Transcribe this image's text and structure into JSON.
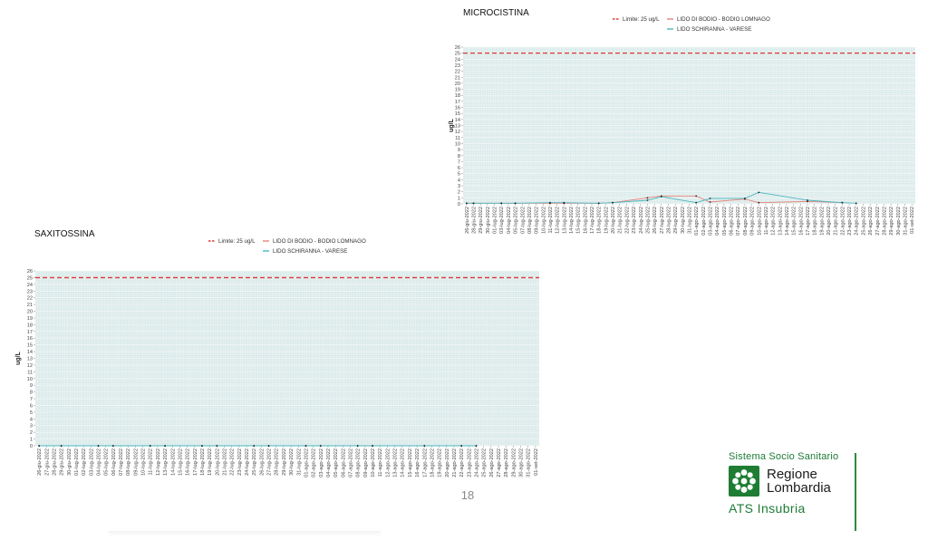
{
  "page_number": "18",
  "logo": {
    "sistema": "Sistema Socio Sanitario",
    "regione": "Regione",
    "lombardia": "Lombardia",
    "ats": "ATS Insubria",
    "brand_color": "#1e7d33"
  },
  "chart_data": [
    {
      "id": "microcistina",
      "type": "line",
      "title": "MICROCISTINA",
      "xlabel": "",
      "ylabel": "ug/L",
      "ylim": [
        0,
        26
      ],
      "yticks": [
        0,
        1,
        2,
        3,
        4,
        5,
        6,
        7,
        8,
        9,
        10,
        11,
        12,
        13,
        14,
        15,
        16,
        17,
        18,
        19,
        20,
        21,
        22,
        23,
        24,
        25,
        26
      ],
      "grid": true,
      "background": "#d9e9e9",
      "categories": [
        "26-giu-2022",
        "28-giu-2022",
        "29-giu-2022",
        "30-giu-2022",
        "01-lug-2022",
        "03-lug-2022",
        "04-lug-2022",
        "05-lug-2022",
        "07-lug-2022",
        "08-lug-2022",
        "09-lug-2022",
        "10-lug-2022",
        "11-lug-2022",
        "12-lug-2022",
        "13-lug-2022",
        "14-lug-2022",
        "15-lug-2022",
        "16-lug-2022",
        "17-lug-2022",
        "18-lug-2022",
        "19-lug-2022",
        "20-lug-2022",
        "21-lug-2022",
        "22-lug-2022",
        "23-lug-2022",
        "24-lug-2022",
        "25-lug-2022",
        "26-lug-2022",
        "27-lug-2022",
        "28-lug-2022",
        "29-lug-2022",
        "30-lug-2022",
        "31-lug-2022",
        "01-ago-2022",
        "02-ago-2022",
        "03-ago-2022",
        "04-ago-2022",
        "05-ago-2022",
        "06-ago-2022",
        "07-ago-2022",
        "08-ago-2022",
        "09-ago-2022",
        "10-ago-2022",
        "11-ago-2022",
        "12-ago-2022",
        "13-ago-2022",
        "14-ago-2022",
        "15-ago-2022",
        "16-ago-2022",
        "17-ago-2022",
        "18-ago-2022",
        "19-ago-2022",
        "20-ago-2022",
        "21-ago-2022",
        "22-ago-2022",
        "23-ago-2022",
        "24-ago-2022",
        "25-ago-2022",
        "26-ago-2022",
        "27-ago-2022",
        "28-ago-2022",
        "29-ago-2022",
        "30-ago-2022",
        "31-ago-2022",
        "01-set-2022"
      ],
      "legend": {
        "placement": "top"
      },
      "threshold": {
        "name": "Limite: 25 ug/L",
        "value": 25,
        "color": "#e03a3a",
        "style": "dashed"
      },
      "series": [
        {
          "name": "LIDO DI BODIO - BODIO LOMNAGO",
          "color": "#e8837b",
          "points": [
            [
              "26-giu-2022",
              0.1
            ],
            [
              "28-giu-2022",
              0.1
            ],
            [
              "03-lug-2022",
              0.1
            ],
            [
              "05-lug-2022",
              0.1
            ],
            [
              "11-lug-2022",
              0.1
            ],
            [
              "13-lug-2022",
              0.1
            ],
            [
              "18-lug-2022",
              0.1
            ],
            [
              "20-lug-2022",
              0.2
            ],
            [
              "25-lug-2022",
              1.0
            ],
            [
              "27-lug-2022",
              1.3
            ],
            [
              "01-ago-2022",
              1.3
            ],
            [
              "03-ago-2022",
              0.3
            ],
            [
              "08-ago-2022",
              0.8
            ],
            [
              "10-ago-2022",
              0.2
            ],
            [
              "17-ago-2022",
              0.4
            ],
            [
              "22-ago-2022",
              0.2
            ]
          ]
        },
        {
          "name": "LIDO SCHIRANNA - VARESE",
          "color": "#4bb8c0",
          "points": [
            [
              "26-giu-2022",
              0.1
            ],
            [
              "28-giu-2022",
              0.1
            ],
            [
              "03-lug-2022",
              0.1
            ],
            [
              "05-lug-2022",
              0.1
            ],
            [
              "11-lug-2022",
              0.2
            ],
            [
              "13-lug-2022",
              0.2
            ],
            [
              "18-lug-2022",
              0.1
            ],
            [
              "20-lug-2022",
              0.2
            ],
            [
              "25-lug-2022",
              0.6
            ],
            [
              "27-lug-2022",
              1.2
            ],
            [
              "01-ago-2022",
              0.2
            ],
            [
              "03-ago-2022",
              0.9
            ],
            [
              "08-ago-2022",
              0.9
            ],
            [
              "10-ago-2022",
              1.9
            ],
            [
              "17-ago-2022",
              0.6
            ],
            [
              "22-ago-2022",
              0.2
            ],
            [
              "24-ago-2022",
              0.1
            ]
          ]
        }
      ]
    },
    {
      "id": "saxitossina",
      "type": "line",
      "title": "SAXITOSSINA",
      "xlabel": "",
      "ylabel": "ug/L",
      "ylim": [
        0,
        26
      ],
      "yticks": [
        0,
        1,
        2,
        3,
        4,
        5,
        6,
        7,
        8,
        9,
        10,
        11,
        12,
        13,
        14,
        15,
        16,
        17,
        18,
        19,
        20,
        21,
        22,
        23,
        24,
        25,
        26
      ],
      "grid": true,
      "background": "#d9e9e9",
      "categories": [
        "26-giu-2022",
        "27-giu-2022",
        "28-giu-2022",
        "29-giu-2022",
        "30-giu-2022",
        "01-lug-2022",
        "02-lug-2022",
        "03-lug-2022",
        "04-lug-2022",
        "05-lug-2022",
        "06-lug-2022",
        "07-lug-2022",
        "08-lug-2022",
        "09-lug-2022",
        "10-lug-2022",
        "11-lug-2022",
        "12-lug-2022",
        "13-lug-2022",
        "14-lug-2022",
        "15-lug-2022",
        "16-lug-2022",
        "17-lug-2022",
        "18-lug-2022",
        "19-lug-2022",
        "20-lug-2022",
        "21-lug-2022",
        "22-lug-2022",
        "23-lug-2022",
        "24-lug-2022",
        "25-lug-2022",
        "26-lug-2022",
        "27-lug-2022",
        "28-lug-2022",
        "29-lug-2022",
        "30-lug-2022",
        "31-lug-2022",
        "01-ago-2022",
        "02-ago-2022",
        "03-ago-2022",
        "04-ago-2022",
        "05-ago-2022",
        "06-ago-2022",
        "07-ago-2022",
        "08-ago-2022",
        "09-ago-2022",
        "10-ago-2022",
        "11-ago-2022",
        "12-ago-2022",
        "13-ago-2022",
        "14-ago-2022",
        "15-ago-2022",
        "16-ago-2022",
        "17-ago-2022",
        "18-ago-2022",
        "19-ago-2022",
        "20-ago-2022",
        "21-ago-2022",
        "22-ago-2022",
        "23-ago-2022",
        "24-ago-2022",
        "25-ago-2022",
        "26-ago-2022",
        "27-ago-2022",
        "28-ago-2022",
        "29-ago-2022",
        "30-ago-2022",
        "31-ago-2022",
        "01-set-2022"
      ],
      "legend": {
        "placement": "top"
      },
      "threshold": {
        "name": "Limite: 25 ug/L",
        "value": 25,
        "color": "#e03a3a",
        "style": "dashed"
      },
      "series": [
        {
          "name": "LIDO DI BODIO - BODIO LOMNAGO",
          "color": "#e8837b",
          "points": [
            [
              "26-giu-2022",
              0
            ],
            [
              "29-giu-2022",
              0
            ],
            [
              "04-lug-2022",
              0
            ],
            [
              "06-lug-2022",
              0
            ],
            [
              "11-lug-2022",
              0
            ],
            [
              "13-lug-2022",
              0
            ],
            [
              "18-lug-2022",
              0
            ],
            [
              "20-lug-2022",
              0
            ],
            [
              "25-lug-2022",
              0
            ],
            [
              "27-lug-2022",
              0
            ],
            [
              "01-ago-2022",
              0
            ],
            [
              "03-ago-2022",
              0
            ],
            [
              "08-ago-2022",
              0
            ],
            [
              "10-ago-2022",
              0
            ],
            [
              "17-ago-2022",
              0
            ],
            [
              "22-ago-2022",
              0
            ],
            [
              "24-ago-2022",
              0
            ]
          ]
        },
        {
          "name": "LIDO SCHIRANNA - VARESE",
          "color": "#4bb8c0",
          "points": [
            [
              "26-giu-2022",
              0
            ],
            [
              "29-giu-2022",
              0
            ],
            [
              "04-lug-2022",
              0
            ],
            [
              "06-lug-2022",
              0
            ],
            [
              "11-lug-2022",
              0
            ],
            [
              "13-lug-2022",
              0
            ],
            [
              "18-lug-2022",
              0
            ],
            [
              "20-lug-2022",
              0
            ],
            [
              "25-lug-2022",
              0
            ],
            [
              "27-lug-2022",
              0
            ],
            [
              "01-ago-2022",
              0
            ],
            [
              "03-ago-2022",
              0
            ],
            [
              "08-ago-2022",
              0
            ],
            [
              "10-ago-2022",
              0
            ],
            [
              "17-ago-2022",
              0
            ],
            [
              "22-ago-2022",
              0
            ],
            [
              "24-ago-2022",
              0
            ]
          ]
        }
      ]
    }
  ]
}
